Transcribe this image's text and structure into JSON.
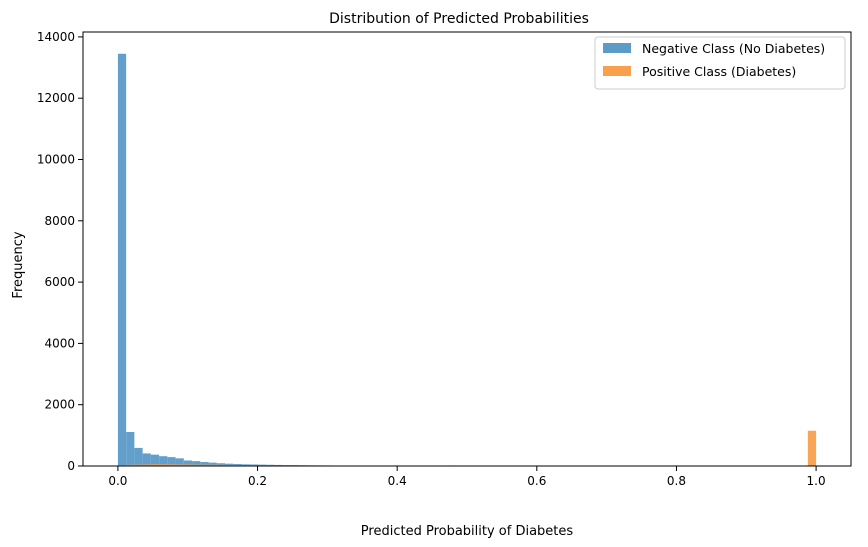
{
  "chart_data": {
    "type": "bar",
    "title": "Distribution of Predicted Probabilities",
    "xlabel": "Predicted Probability of Diabetes",
    "ylabel": "Frequency",
    "xlim": [
      -0.05,
      1.05
    ],
    "ylim": [
      0,
      14160
    ],
    "xticks": [
      0.0,
      0.2,
      0.4,
      0.6,
      0.8,
      1.0
    ],
    "xtick_labels": [
      "0.0",
      "0.2",
      "0.4",
      "0.6",
      "0.8",
      "1.0"
    ],
    "yticks": [
      0,
      2000,
      4000,
      6000,
      8000,
      10000,
      12000,
      14000
    ],
    "ytick_labels": [
      "0",
      "2000",
      "4000",
      "6000",
      "8000",
      "10000",
      "12000",
      "14000"
    ],
    "grid": false,
    "legend_position": "top-right",
    "series": [
      {
        "name": "Negative Class (No Diabetes)",
        "color": "#5a9bc8",
        "bin_width": 0.0118,
        "bin_start": 0.0,
        "values": [
          13450,
          1110,
          590,
          410,
          370,
          320,
          290,
          250,
          180,
          160,
          130,
          110,
          90,
          75,
          65,
          55,
          50,
          45,
          40,
          35,
          30,
          28,
          25,
          22,
          20,
          18,
          16,
          15,
          14,
          13,
          12,
          11,
          10,
          9,
          8,
          7
        ]
      },
      {
        "name": "Positive Class (Diabetes)",
        "color": "#f9a04e",
        "bin_width": 0.0118,
        "bin_start": 0.0,
        "values": [
          30,
          40,
          45,
          50,
          55,
          55,
          52,
          50,
          48,
          45,
          42,
          40,
          38,
          35,
          33,
          30,
          28,
          26,
          24,
          22,
          20,
          18,
          17,
          16,
          15,
          14,
          13,
          12,
          11,
          10,
          9,
          8,
          8,
          7,
          7,
          6,
          5,
          5,
          4,
          4,
          3,
          3
        ],
        "extra_bins": [
          {
            "x0": 0.9882,
            "value": 1150
          },
          {
            "x0": 0.47,
            "value": 18
          }
        ]
      }
    ]
  }
}
